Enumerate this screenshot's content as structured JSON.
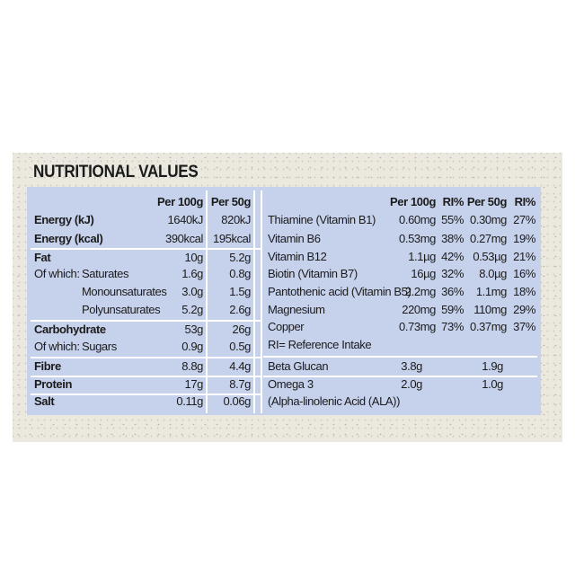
{
  "title": "NUTRITIONAL VALUES",
  "left_table": {
    "columns": [
      "Per 100g",
      "Per 50g"
    ],
    "rows": [
      {
        "label": "Energy (kJ)",
        "values": [
          "1640kJ",
          "820kJ"
        ]
      },
      {
        "label": "Energy (kcal)",
        "values": [
          "390kcal",
          "195kcal"
        ]
      },
      {
        "label": "Fat",
        "values": [
          "10g",
          "5.2g"
        ]
      },
      {
        "label": "Of which:",
        "sub": "Saturates",
        "values": [
          "1.6g",
          "0.8g"
        ]
      },
      {
        "sub": "Monounsaturates",
        "values": [
          "3.0g",
          "1.5g"
        ]
      },
      {
        "sub": "Polyunsaturates",
        "values": [
          "5.2g",
          "2.6g"
        ]
      },
      {
        "label": "Carbohydrate",
        "values": [
          "53g",
          "26g"
        ]
      },
      {
        "label": "Of which:",
        "sub": "Sugars",
        "values": [
          "0.9g",
          "0.5g"
        ]
      },
      {
        "label": "Fibre",
        "values": [
          "8.8g",
          "4.4g"
        ]
      },
      {
        "label": "Protein",
        "values": [
          "17g",
          "8.7g"
        ]
      },
      {
        "label": "Salt",
        "values": [
          "0.11g",
          "0.06g"
        ]
      }
    ]
  },
  "right_table": {
    "columns": [
      "Per 100g",
      "RI%",
      "Per 50g",
      "RI%"
    ],
    "rows": [
      {
        "label": "Thiamine (Vitamin B1)",
        "values": [
          "0.60mg",
          "55%",
          "0.30mg",
          "27%"
        ]
      },
      {
        "label": "Vitamin B6",
        "values": [
          "0.53mg",
          "38%",
          "0.27mg",
          "19%"
        ]
      },
      {
        "label": "Vitamin B12",
        "values": [
          "1.1µg",
          "42%",
          "0.53µg",
          "21%"
        ]
      },
      {
        "label": "Biotin (Vitamin B7)",
        "values": [
          "16µg",
          "32%",
          "8.0µg",
          "16%"
        ]
      },
      {
        "label": "Pantothenic acid (Vitamin B5)",
        "values": [
          "2.2mg",
          "36%",
          "1.1mg",
          "18%"
        ]
      },
      {
        "label": "Magnesium",
        "values": [
          "220mg",
          "59%",
          "110mg",
          "29%"
        ]
      },
      {
        "label": "Copper",
        "values": [
          "0.73mg",
          "73%",
          "0.37mg",
          "37%"
        ]
      }
    ],
    "note": "RI= Reference Intake",
    "extra_rows": [
      {
        "label": "Beta Glucan",
        "values": [
          "3.8g",
          "1.9g"
        ]
      },
      {
        "label": "Omega 3",
        "values": [
          "2.0g",
          "1.0g"
        ]
      },
      {
        "label": "(Alpha-linolenic Acid (ALA))"
      }
    ]
  }
}
